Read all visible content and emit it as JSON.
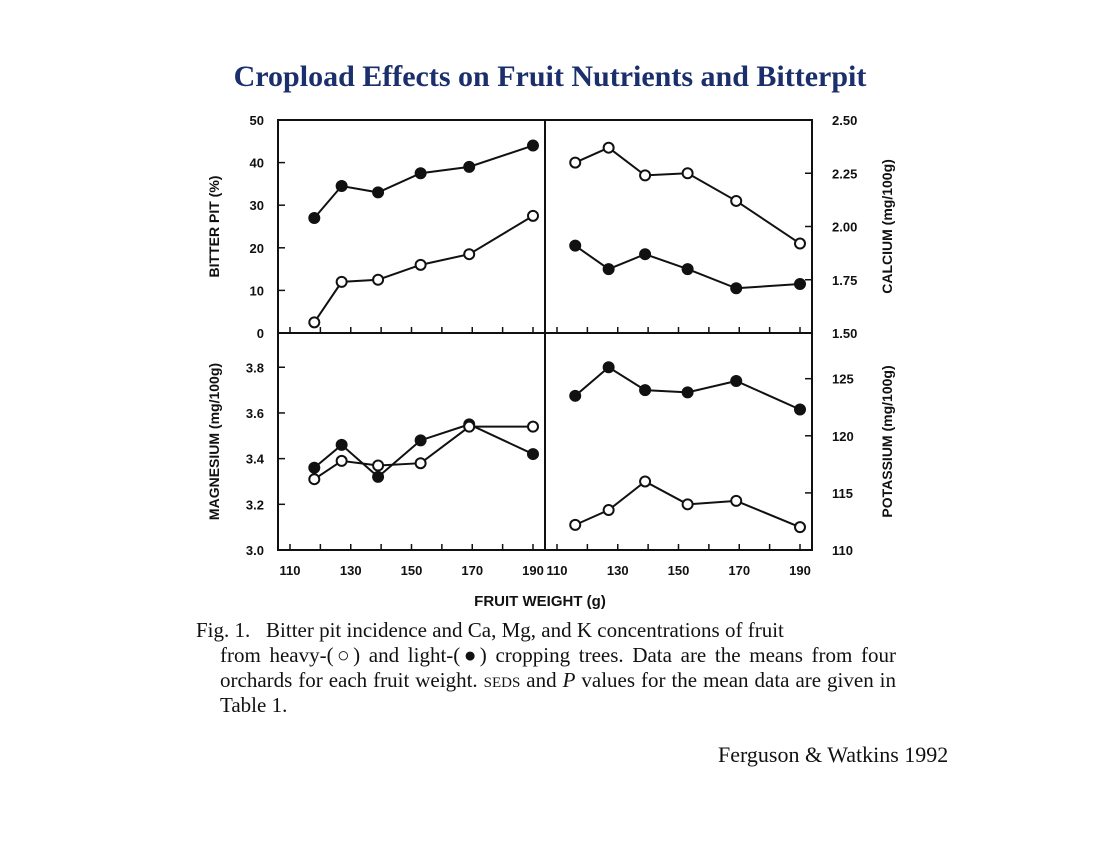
{
  "slide": {
    "title": "Cropload Effects on Fruit Nutrients and Bitterpit",
    "credit": "Ferguson & Watkins 1992"
  },
  "caption": {
    "fig_label": "Fig. 1.",
    "text_1": "Bitter pit incidence and Ca, Mg, and K concentrations of fruit",
    "text_2": "from heavy-(",
    "open_symbol": "○",
    "text_3": ") and light-(",
    "filled_symbol": "●",
    "text_4": ") cropping trees. Data are the means from four orchards for each fruit weight.",
    "seds": "seds",
    "text_5": "and",
    "p_symbol": "P",
    "text_6": "values for the mean data are given in Table 1."
  },
  "shared_xlabel": "FRUIT WEIGHT (g)",
  "chart_data": [
    {
      "type": "line",
      "panel": "top-left",
      "ylabel": "BITTER PIT (%)",
      "ylim": [
        0,
        50
      ],
      "yticks": [
        "0",
        "10",
        "20",
        "30",
        "40",
        "50"
      ],
      "xlim": [
        110,
        190
      ],
      "series": [
        {
          "name": "light",
          "marker": "filled",
          "x": [
            118,
            127,
            139,
            153,
            169,
            190
          ],
          "y": [
            27,
            34.5,
            33,
            37.5,
            39,
            44
          ]
        },
        {
          "name": "heavy",
          "marker": "open",
          "x": [
            118,
            127,
            139,
            153,
            169,
            190
          ],
          "y": [
            2.5,
            12,
            12.5,
            16,
            18.5,
            27.5
          ]
        }
      ]
    },
    {
      "type": "line",
      "panel": "top-right",
      "ylabel": "CALCIUM (mg/100g)",
      "ylim": [
        1.5,
        2.5
      ],
      "yticks": [
        "1.50",
        "1.75",
        "2.00",
        "2.25",
        "2.50"
      ],
      "xlim": [
        110,
        190
      ],
      "series": [
        {
          "name": "heavy",
          "marker": "open",
          "x": [
            116,
            127,
            139,
            153,
            169,
            190
          ],
          "y": [
            2.3,
            2.37,
            2.24,
            2.25,
            2.12,
            1.92
          ]
        },
        {
          "name": "light",
          "marker": "filled",
          "x": [
            116,
            127,
            139,
            153,
            169,
            190
          ],
          "y": [
            1.91,
            1.8,
            1.87,
            1.8,
            1.71,
            1.73
          ]
        }
      ]
    },
    {
      "type": "line",
      "panel": "bottom-left",
      "ylabel": "MAGNESIUM (mg/100g)",
      "ylim": [
        3.0,
        3.95
      ],
      "yticks": [
        "3.0",
        "3.2",
        "3.4",
        "3.6",
        "3.8"
      ],
      "xlim": [
        110,
        190
      ],
      "xticks": [
        "110",
        "130",
        "150",
        "170",
        "190"
      ],
      "series": [
        {
          "name": "light",
          "marker": "filled",
          "x": [
            118,
            127,
            139,
            153,
            169,
            190
          ],
          "y": [
            3.36,
            3.46,
            3.32,
            3.48,
            3.55,
            3.42
          ]
        },
        {
          "name": "heavy",
          "marker": "open",
          "x": [
            118,
            127,
            139,
            153,
            169,
            190
          ],
          "y": [
            3.31,
            3.39,
            3.37,
            3.38,
            3.54,
            3.54
          ]
        }
      ]
    },
    {
      "type": "line",
      "panel": "bottom-right",
      "ylabel": "POTASSIUM (mg/100g)",
      "ylim": [
        110,
        129
      ],
      "yticks": [
        "110",
        "115",
        "120",
        "125"
      ],
      "xlim": [
        110,
        190
      ],
      "xticks": [
        "110",
        "130",
        "150",
        "170",
        "190"
      ],
      "series": [
        {
          "name": "light",
          "marker": "filled",
          "x": [
            116,
            127,
            139,
            153,
            169,
            190
          ],
          "y": [
            123.5,
            126.0,
            124.0,
            123.8,
            124.8,
            122.3
          ]
        },
        {
          "name": "heavy",
          "marker": "open",
          "x": [
            116,
            127,
            139,
            153,
            169,
            190
          ],
          "y": [
            112.2,
            113.5,
            116.0,
            114.0,
            114.3,
            112.0
          ]
        }
      ]
    }
  ]
}
